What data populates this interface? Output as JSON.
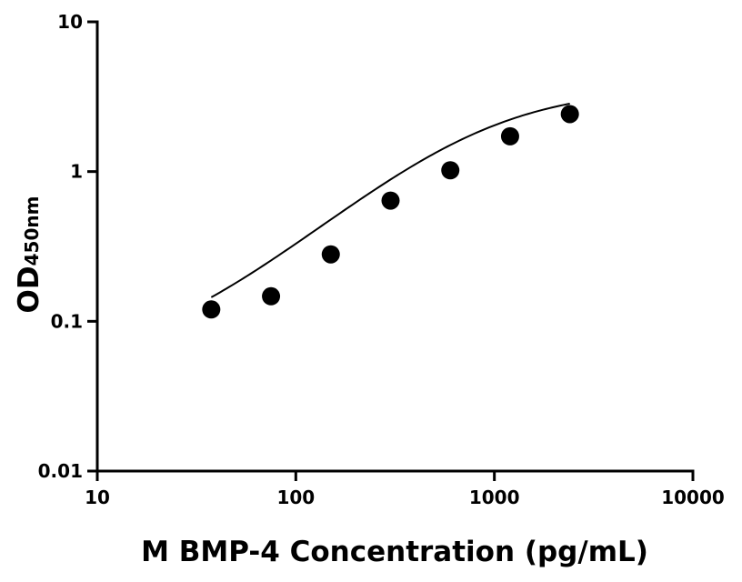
{
  "chart_data": {
    "type": "scatter",
    "xlabel": "M BMP-4 Concentration (pg/mL)",
    "ylabel": "OD",
    "ylabel_subscript": "450nm",
    "x_scale": "log",
    "y_scale": "log",
    "xlim": [
      10,
      10000
    ],
    "ylim": [
      0.01,
      10
    ],
    "x_ticks": [
      10,
      100,
      1000,
      10000
    ],
    "x_tick_labels": [
      "10",
      "100",
      "1000",
      "10000"
    ],
    "y_ticks": [
      0.01,
      0.1,
      1,
      10
    ],
    "y_tick_labels": [
      "0.01",
      "0.1",
      "1",
      "10"
    ],
    "grid": false,
    "legend": "none",
    "series": [
      {
        "points": [
          {
            "x": 37.5,
            "y": 0.12
          },
          {
            "x": 75,
            "y": 0.147
          },
          {
            "x": 150,
            "y": 0.28
          },
          {
            "x": 300,
            "y": 0.64
          },
          {
            "x": 600,
            "y": 1.02
          },
          {
            "x": 1200,
            "y": 1.72
          },
          {
            "x": 2400,
            "y": 2.42
          }
        ]
      }
    ],
    "fit_curve": {
      "type": "4PL",
      "x_range": [
        37.5,
        2400
      ],
      "params": {
        "bottom": 0.05,
        "top": 3.68,
        "ec50": 850,
        "hill": 1.16
      }
    },
    "colors": {
      "marker": "#000000",
      "curve": "#000000",
      "axis": "#000000"
    }
  }
}
